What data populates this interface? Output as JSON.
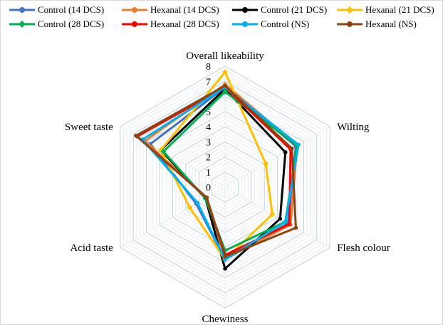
{
  "chart_data": {
    "type": "radar",
    "axes": [
      "Overall likeability",
      "Wilting",
      "Flesh colour",
      "Chewiness",
      "Acid taste",
      "Sweet taste"
    ],
    "rlim": [
      0,
      8
    ],
    "ticks": [
      "0",
      "1",
      "2",
      "3",
      "4",
      "5",
      "6",
      "7",
      "8"
    ],
    "grid": true,
    "legend_position": "top",
    "series": [
      {
        "name": "Control (14 DCS)",
        "color": "#4472C4",
        "marker": "circle",
        "values": [
          6.6,
          5.4,
          4.8,
          4.8,
          2.2,
          5.7
        ]
      },
      {
        "name": "Hexanal (14 DCS)",
        "color": "#ED7D31",
        "marker": "circle",
        "values": [
          6.8,
          5.5,
          5.0,
          4.7,
          1.4,
          6.1
        ]
      },
      {
        "name": "Control (21 DCS)",
        "color": "#000000",
        "marker": "circle",
        "values": [
          6.5,
          4.6,
          4.2,
          5.4,
          1.5,
          4.9
        ]
      },
      {
        "name": "Hexanal (21 DCS)",
        "color": "#FFC000",
        "marker": "diamond",
        "values": [
          7.6,
          3.1,
          3.6,
          4.8,
          2.7,
          4.9
        ]
      },
      {
        "name": "Control (28 DCS)",
        "color": "#00B050",
        "marker": "diamond",
        "values": [
          6.3,
          5.5,
          4.6,
          4.2,
          1.5,
          4.7
        ]
      },
      {
        "name": "Hexanal (28 DCS)",
        "color": "#FF0000",
        "marker": "circle",
        "values": [
          6.6,
          5.0,
          4.9,
          4.5,
          1.4,
          6.7
        ]
      },
      {
        "name": "Control (NS)",
        "color": "#00B0F0",
        "marker": "circle",
        "values": [
          6.6,
          5.6,
          4.6,
          4.8,
          2.1,
          6.3
        ]
      },
      {
        "name": "Hexanal (NS)",
        "color": "#8B4513",
        "marker": "circle",
        "values": [
          6.7,
          5.1,
          5.4,
          4.6,
          1.4,
          6.8
        ]
      }
    ]
  }
}
